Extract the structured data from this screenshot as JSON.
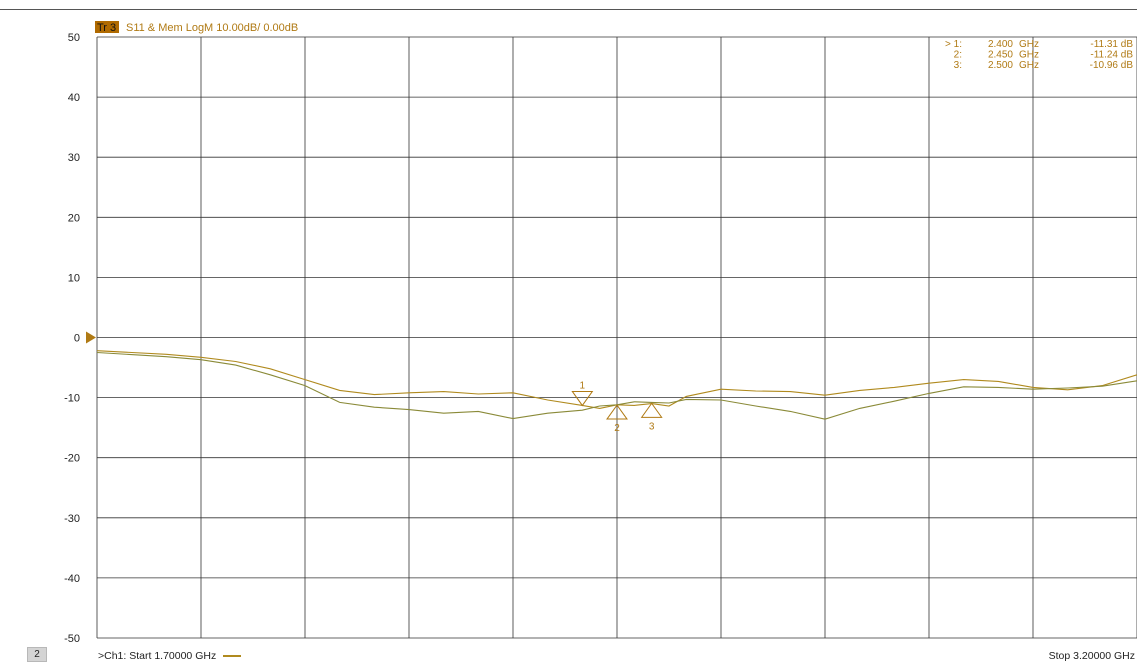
{
  "trace_header": {
    "tag": "Tr 3",
    "text": "S11 & Mem LogM 10.00dB/ 0.00dB"
  },
  "colors": {
    "trace": "#b08a1e",
    "memory_trace": "#8a8a38",
    "marker": "#b07a14",
    "tag_bg": "#b06a00",
    "grid": "#333333"
  },
  "marker_table": [
    {
      "index": "> 1:",
      "freq": "2.400",
      "unit": "GHz",
      "value": "-11.31 dB"
    },
    {
      "index": "2:",
      "freq": "2.450",
      "unit": "GHz",
      "value": "-11.24 dB"
    },
    {
      "index": "3:",
      "freq": "2.500",
      "unit": "GHz",
      "value": "-10.96 dB"
    }
  ],
  "footer": {
    "channel_badge": "2",
    "start_text": ">Ch1:  Start  1.70000 GHz",
    "stop_text": "Stop  3.20000 GHz"
  },
  "chart_data": {
    "type": "line",
    "xlim": [
      1.7,
      3.2
    ],
    "ylim": [
      -50,
      50
    ],
    "x_unit": "GHz",
    "y_unit": "dB",
    "y_ticks": [
      "50",
      "40",
      "30",
      "20",
      "10",
      "0",
      "-10",
      "-20",
      "-30",
      "-40",
      "-50"
    ],
    "grid": true,
    "reference_level": 0,
    "series": [
      {
        "x": [
          1.7,
          1.8,
          1.85,
          1.9,
          1.95,
          2.0,
          2.05,
          2.1,
          2.15,
          2.2,
          2.25,
          2.3,
          2.35,
          2.4,
          2.425,
          2.45,
          2.475,
          2.5,
          2.525,
          2.55,
          2.6,
          2.65,
          2.7,
          2.75,
          2.8,
          2.85,
          2.9,
          2.95,
          3.0,
          3.05,
          3.1,
          3.15,
          3.2
        ],
        "y": [
          -2.2,
          -2.8,
          -3.3,
          -4.0,
          -5.2,
          -7.0,
          -8.8,
          -9.5,
          -9.2,
          -9.0,
          -9.4,
          -9.2,
          -10.4,
          -11.3,
          -11.8,
          -11.2,
          -11.3,
          -11.0,
          -11.4,
          -9.8,
          -8.6,
          -8.9,
          -9.0,
          -9.6,
          -8.8,
          -8.3,
          -7.6,
          -7.0,
          -7.3,
          -8.3,
          -8.7,
          -8.0,
          -6.2
        ]
      },
      {
        "x": [
          1.7,
          1.8,
          1.85,
          1.9,
          1.95,
          2.0,
          2.05,
          2.1,
          2.15,
          2.2,
          2.25,
          2.3,
          2.35,
          2.4,
          2.425,
          2.45,
          2.475,
          2.5,
          2.525,
          2.55,
          2.6,
          2.65,
          2.7,
          2.75,
          2.8,
          2.85,
          2.9,
          2.95,
          3.0,
          3.05,
          3.1,
          3.15,
          3.2
        ],
        "y": [
          -2.5,
          -3.2,
          -3.7,
          -4.6,
          -6.2,
          -8.0,
          -10.8,
          -11.6,
          -12.0,
          -12.6,
          -12.3,
          -13.5,
          -12.6,
          -12.1,
          -11.4,
          -11.2,
          -10.7,
          -10.8,
          -10.9,
          -10.3,
          -10.4,
          -11.4,
          -12.3,
          -13.6,
          -11.8,
          -10.6,
          -9.3,
          -8.2,
          -8.3,
          -8.6,
          -8.4,
          -8.1,
          -7.2
        ]
      }
    ],
    "markers": [
      {
        "label": "1",
        "x": 2.4,
        "y": -11.31,
        "symbol": "down"
      },
      {
        "label": "2",
        "x": 2.45,
        "y": -11.24,
        "symbol": "up"
      },
      {
        "label": "3",
        "x": 2.5,
        "y": -10.96,
        "symbol": "up"
      }
    ]
  }
}
